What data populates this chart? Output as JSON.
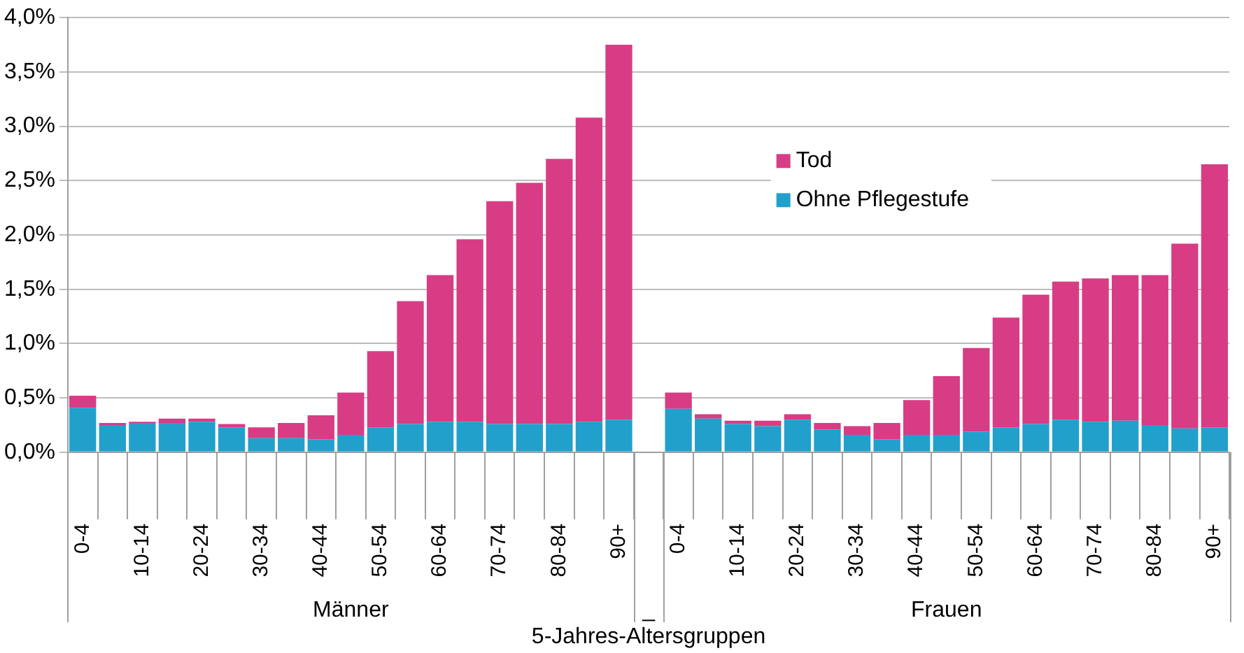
{
  "chart_data": {
    "type": "bar",
    "stacked": true,
    "xlabel": "5-Jahres-Altersgruppen",
    "categories": [
      "0-4",
      null,
      "10-14",
      null,
      "20-24",
      null,
      "30-34",
      null,
      "40-44",
      null,
      "50-54",
      null,
      "60-64",
      null,
      "70-74",
      null,
      "80-84",
      null,
      "90+",
      null,
      "0-4",
      null,
      "10-14",
      null,
      "20-24",
      null,
      "30-34",
      null,
      "40-44",
      null,
      "50-54",
      null,
      "60-64",
      null,
      "70-74",
      null,
      "80-84",
      null,
      "90+"
    ],
    "annotations": [
      "Männer",
      "_",
      "Frauen"
    ],
    "series": [
      {
        "name": "Ohne Pflegestufe",
        "color": "#21a0cc",
        "values": [
          0.41,
          0.25,
          0.27,
          0.27,
          0.28,
          0.23,
          0.13,
          0.13,
          0.12,
          0.16,
          0.23,
          0.26,
          0.28,
          0.28,
          0.26,
          0.26,
          0.26,
          0.28,
          0.3,
          null,
          0.4,
          0.31,
          0.26,
          0.24,
          0.3,
          0.21,
          0.16,
          0.12,
          0.16,
          0.16,
          0.19,
          0.23,
          0.26,
          0.3,
          0.28,
          0.29,
          0.25,
          0.22,
          0.23
        ]
      },
      {
        "name": "Tod",
        "color": "#d83c84",
        "values": [
          0.11,
          0.02,
          0.01,
          0.04,
          0.03,
          0.03,
          0.1,
          0.14,
          0.22,
          0.39,
          0.7,
          1.13,
          1.35,
          1.68,
          2.05,
          2.22,
          2.44,
          2.8,
          3.45,
          null,
          0.15,
          0.04,
          0.03,
          0.05,
          0.05,
          0.06,
          0.08,
          0.15,
          0.32,
          0.54,
          0.77,
          1.01,
          1.19,
          1.27,
          1.32,
          1.34,
          1.38,
          1.7,
          2.42
        ]
      }
    ],
    "ylim": [
      0,
      4
    ],
    "yticks": [
      {
        "value": 0,
        "label": "0,0%"
      },
      {
        "value": 0.5,
        "label": "0,5%"
      },
      {
        "value": 1,
        "label": "1,0%"
      },
      {
        "value": 1.5,
        "label": "1,5%"
      },
      {
        "value": 2,
        "label": "2,0%"
      },
      {
        "value": 2.5,
        "label": "2,5%"
      },
      {
        "value": 3,
        "label": "3,0%"
      },
      {
        "value": 3.5,
        "label": "3,5%"
      },
      {
        "value": 4,
        "label": "4,0%"
      }
    ],
    "grid": "y",
    "legend": "top right"
  }
}
